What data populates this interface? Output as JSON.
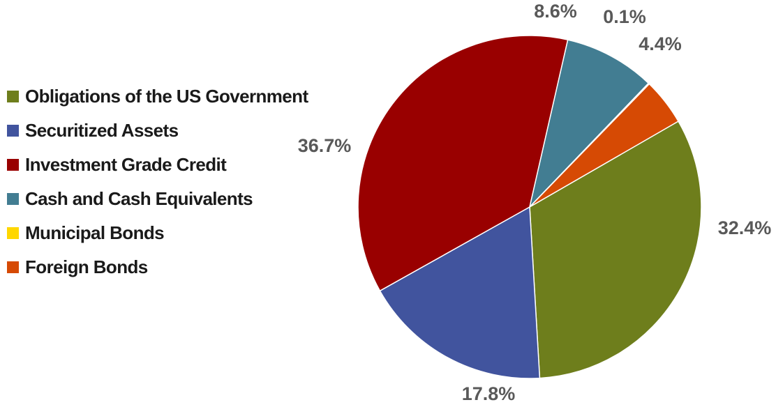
{
  "chart_data": {
    "type": "pie",
    "legend_position": "left",
    "slices": [
      {
        "label": "Obligations  of the US Government",
        "value": 32.4,
        "display": "32.4%",
        "color": "#6E7E1C"
      },
      {
        "label": "Securitized  Assets",
        "value": 17.8,
        "display": "17.8%",
        "color": "#41549E"
      },
      {
        "label": "Investment  Grade Credit",
        "value": 36.7,
        "display": "36.7%",
        "color": "#990000"
      },
      {
        "label": "Cash and Cash Equivalents",
        "value": 8.6,
        "display": "8.6%",
        "color": "#427D92"
      },
      {
        "label": "Municipal  Bonds",
        "value": 0.1,
        "display": "0.1%",
        "color": "#FFD700"
      },
      {
        "label": "Foreign  Bonds",
        "value": 4.4,
        "display": "4.4%",
        "color": "#D64A04"
      }
    ]
  }
}
